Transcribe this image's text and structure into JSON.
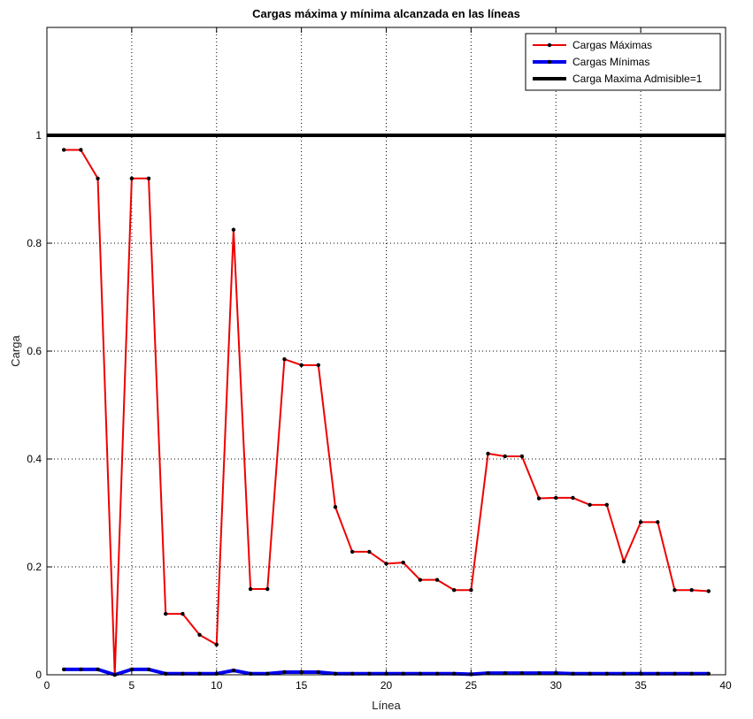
{
  "chart_data": {
    "type": "line",
    "title": "Cargas máxima y mínima alcanzada en las líneas",
    "xlabel": "Línea",
    "ylabel": "Carga",
    "xlim": [
      0,
      40
    ],
    "ylim": [
      0,
      1.2
    ],
    "xticks": [
      0,
      5,
      10,
      15,
      20,
      25,
      30,
      35,
      40
    ],
    "yticks": [
      0,
      0.2,
      0.4,
      0.6,
      0.8,
      1
    ],
    "ytick_labels": [
      "0",
      "0.2",
      "0.4",
      "0.6",
      "0.8",
      "1"
    ],
    "grid": true,
    "legend_position": "top-right",
    "x": [
      1,
      2,
      3,
      4,
      5,
      6,
      7,
      8,
      9,
      10,
      11,
      12,
      13,
      14,
      15,
      16,
      17,
      18,
      19,
      20,
      21,
      22,
      23,
      24,
      25,
      26,
      27,
      28,
      29,
      30,
      31,
      32,
      33,
      34,
      35,
      36,
      37,
      38,
      39
    ],
    "series": [
      {
        "name": "Cargas Máximas",
        "color": "#ee0000",
        "marker": "dot",
        "values": [
          0.973,
          0.973,
          0.92,
          0.0,
          0.92,
          0.92,
          0.113,
          0.113,
          0.074,
          0.056,
          0.825,
          0.159,
          0.159,
          0.585,
          0.574,
          0.574,
          0.311,
          0.228,
          0.228,
          0.206,
          0.208,
          0.176,
          0.176,
          0.157,
          0.157,
          0.41,
          0.405,
          0.405,
          0.327,
          0.328,
          0.328,
          0.315,
          0.315,
          0.21,
          0.283,
          0.283,
          0.157,
          0.157,
          0.155
        ]
      },
      {
        "name": "Cargas  Mínimas",
        "color": "#0000ee",
        "marker": "dot",
        "values": [
          0.01,
          0.01,
          0.01,
          0.0,
          0.01,
          0.01,
          0.002,
          0.002,
          0.002,
          0.002,
          0.008,
          0.002,
          0.002,
          0.005,
          0.005,
          0.005,
          0.002,
          0.002,
          0.002,
          0.002,
          0.002,
          0.002,
          0.002,
          0.002,
          0.001,
          0.003,
          0.003,
          0.003,
          0.003,
          0.003,
          0.002,
          0.002,
          0.002,
          0.002,
          0.002,
          0.002,
          0.002,
          0.002,
          0.002
        ]
      },
      {
        "name": "Carga Maxima Admisible=1",
        "color": "#000000",
        "marker": "none",
        "constant": 1
      }
    ]
  }
}
